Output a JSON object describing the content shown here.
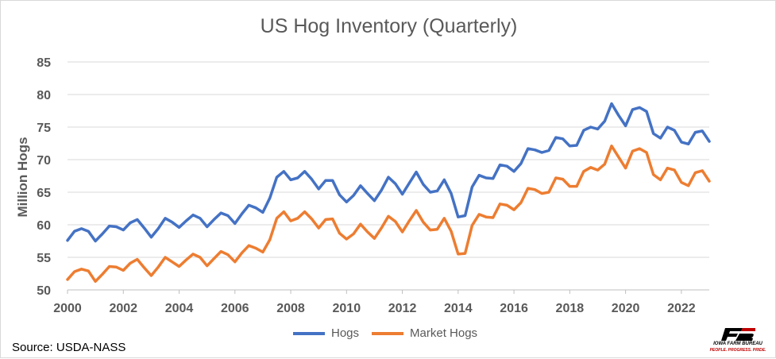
{
  "chart_data": {
    "type": "line",
    "title": "US Hog Inventory (Quarterly)",
    "ylabel": "Million Hogs",
    "xlabel": "",
    "ylim": [
      50,
      85
    ],
    "yticks": [
      50,
      55,
      60,
      65,
      70,
      75,
      80,
      85
    ],
    "xlim": [
      2000,
      2023
    ],
    "xticks": [
      "2000",
      "2002",
      "2004",
      "2006",
      "2008",
      "2010",
      "2012",
      "2014",
      "2016",
      "2018",
      "2020",
      "2022"
    ],
    "grid": "horizontal",
    "legend_position": "bottom",
    "x": [
      2000.0,
      2000.25,
      2000.5,
      2000.75,
      2001.0,
      2001.25,
      2001.5,
      2001.75,
      2002.0,
      2002.25,
      2002.5,
      2002.75,
      2003.0,
      2003.25,
      2003.5,
      2003.75,
      2004.0,
      2004.25,
      2004.5,
      2004.75,
      2005.0,
      2005.25,
      2005.5,
      2005.75,
      2006.0,
      2006.25,
      2006.5,
      2006.75,
      2007.0,
      2007.25,
      2007.5,
      2007.75,
      2008.0,
      2008.25,
      2008.5,
      2008.75,
      2009.0,
      2009.25,
      2009.5,
      2009.75,
      2010.0,
      2010.25,
      2010.5,
      2010.75,
      2011.0,
      2011.25,
      2011.5,
      2011.75,
      2012.0,
      2012.25,
      2012.5,
      2012.75,
      2013.0,
      2013.25,
      2013.5,
      2013.75,
      2014.0,
      2014.25,
      2014.5,
      2014.75,
      2015.0,
      2015.25,
      2015.5,
      2015.75,
      2016.0,
      2016.25,
      2016.5,
      2016.75,
      2017.0,
      2017.25,
      2017.5,
      2017.75,
      2018.0,
      2018.25,
      2018.5,
      2018.75,
      2019.0,
      2019.25,
      2019.5,
      2019.75,
      2020.0,
      2020.25,
      2020.5,
      2020.75,
      2021.0,
      2021.25,
      2021.5,
      2021.75,
      2022.0,
      2022.25,
      2022.5,
      2022.75,
      2023.0
    ],
    "series": [
      {
        "name": "Hogs",
        "color": "#4472c4",
        "values": [
          57.6,
          59.0,
          59.4,
          59.0,
          57.5,
          58.6,
          59.8,
          59.7,
          59.2,
          60.3,
          60.8,
          59.5,
          58.1,
          59.4,
          61.0,
          60.4,
          59.6,
          60.6,
          61.5,
          61.0,
          59.7,
          60.8,
          61.8,
          61.4,
          60.2,
          61.7,
          63.0,
          62.6,
          61.9,
          64.1,
          67.3,
          68.2,
          66.9,
          67.2,
          68.2,
          67.0,
          65.5,
          66.8,
          66.8,
          64.6,
          63.5,
          64.5,
          66.0,
          64.8,
          63.7,
          65.3,
          67.3,
          66.3,
          64.7,
          66.4,
          68.1,
          66.2,
          65.0,
          65.2,
          66.9,
          64.8,
          61.2,
          61.4,
          65.8,
          67.6,
          67.2,
          67.1,
          69.2,
          69.0,
          68.2,
          69.4,
          71.7,
          71.5,
          71.1,
          71.4,
          73.4,
          73.2,
          72.1,
          72.2,
          74.5,
          75.0,
          74.7,
          75.9,
          78.6,
          76.8,
          75.2,
          77.7,
          78.0,
          77.4,
          74.0,
          73.3,
          75.0,
          74.5,
          72.7,
          72.4,
          74.2,
          74.4,
          72.8
        ]
      },
      {
        "name": "Market Hogs",
        "color": "#ed7d31",
        "values": [
          51.6,
          52.8,
          53.2,
          52.9,
          51.3,
          52.4,
          53.6,
          53.5,
          53.0,
          54.1,
          54.7,
          53.4,
          52.2,
          53.5,
          55.0,
          54.3,
          53.6,
          54.6,
          55.5,
          55.0,
          53.7,
          54.8,
          55.9,
          55.4,
          54.3,
          55.7,
          56.8,
          56.4,
          55.8,
          57.7,
          61.0,
          62.0,
          60.6,
          61.0,
          62.0,
          60.9,
          59.5,
          60.8,
          60.9,
          58.7,
          57.8,
          58.6,
          60.1,
          58.9,
          57.9,
          59.5,
          61.3,
          60.5,
          58.9,
          60.6,
          62.2,
          60.4,
          59.2,
          59.3,
          61.0,
          59.0,
          55.5,
          55.6,
          59.9,
          61.6,
          61.2,
          61.1,
          63.2,
          63.0,
          62.3,
          63.4,
          65.6,
          65.4,
          64.8,
          65.0,
          67.2,
          67.0,
          65.9,
          65.9,
          68.2,
          68.8,
          68.4,
          69.3,
          72.1,
          70.4,
          68.7,
          71.3,
          71.7,
          71.1,
          67.7,
          66.9,
          68.7,
          68.4,
          66.5,
          66.0,
          68.0,
          68.3,
          66.7
        ]
      }
    ]
  },
  "source": "Source: USDA-NASS",
  "logo": {
    "mark": "FB",
    "name": "IOWA FARM BUREAU",
    "tagline": "PEOPLE. PROGRESS. PRIDE."
  }
}
